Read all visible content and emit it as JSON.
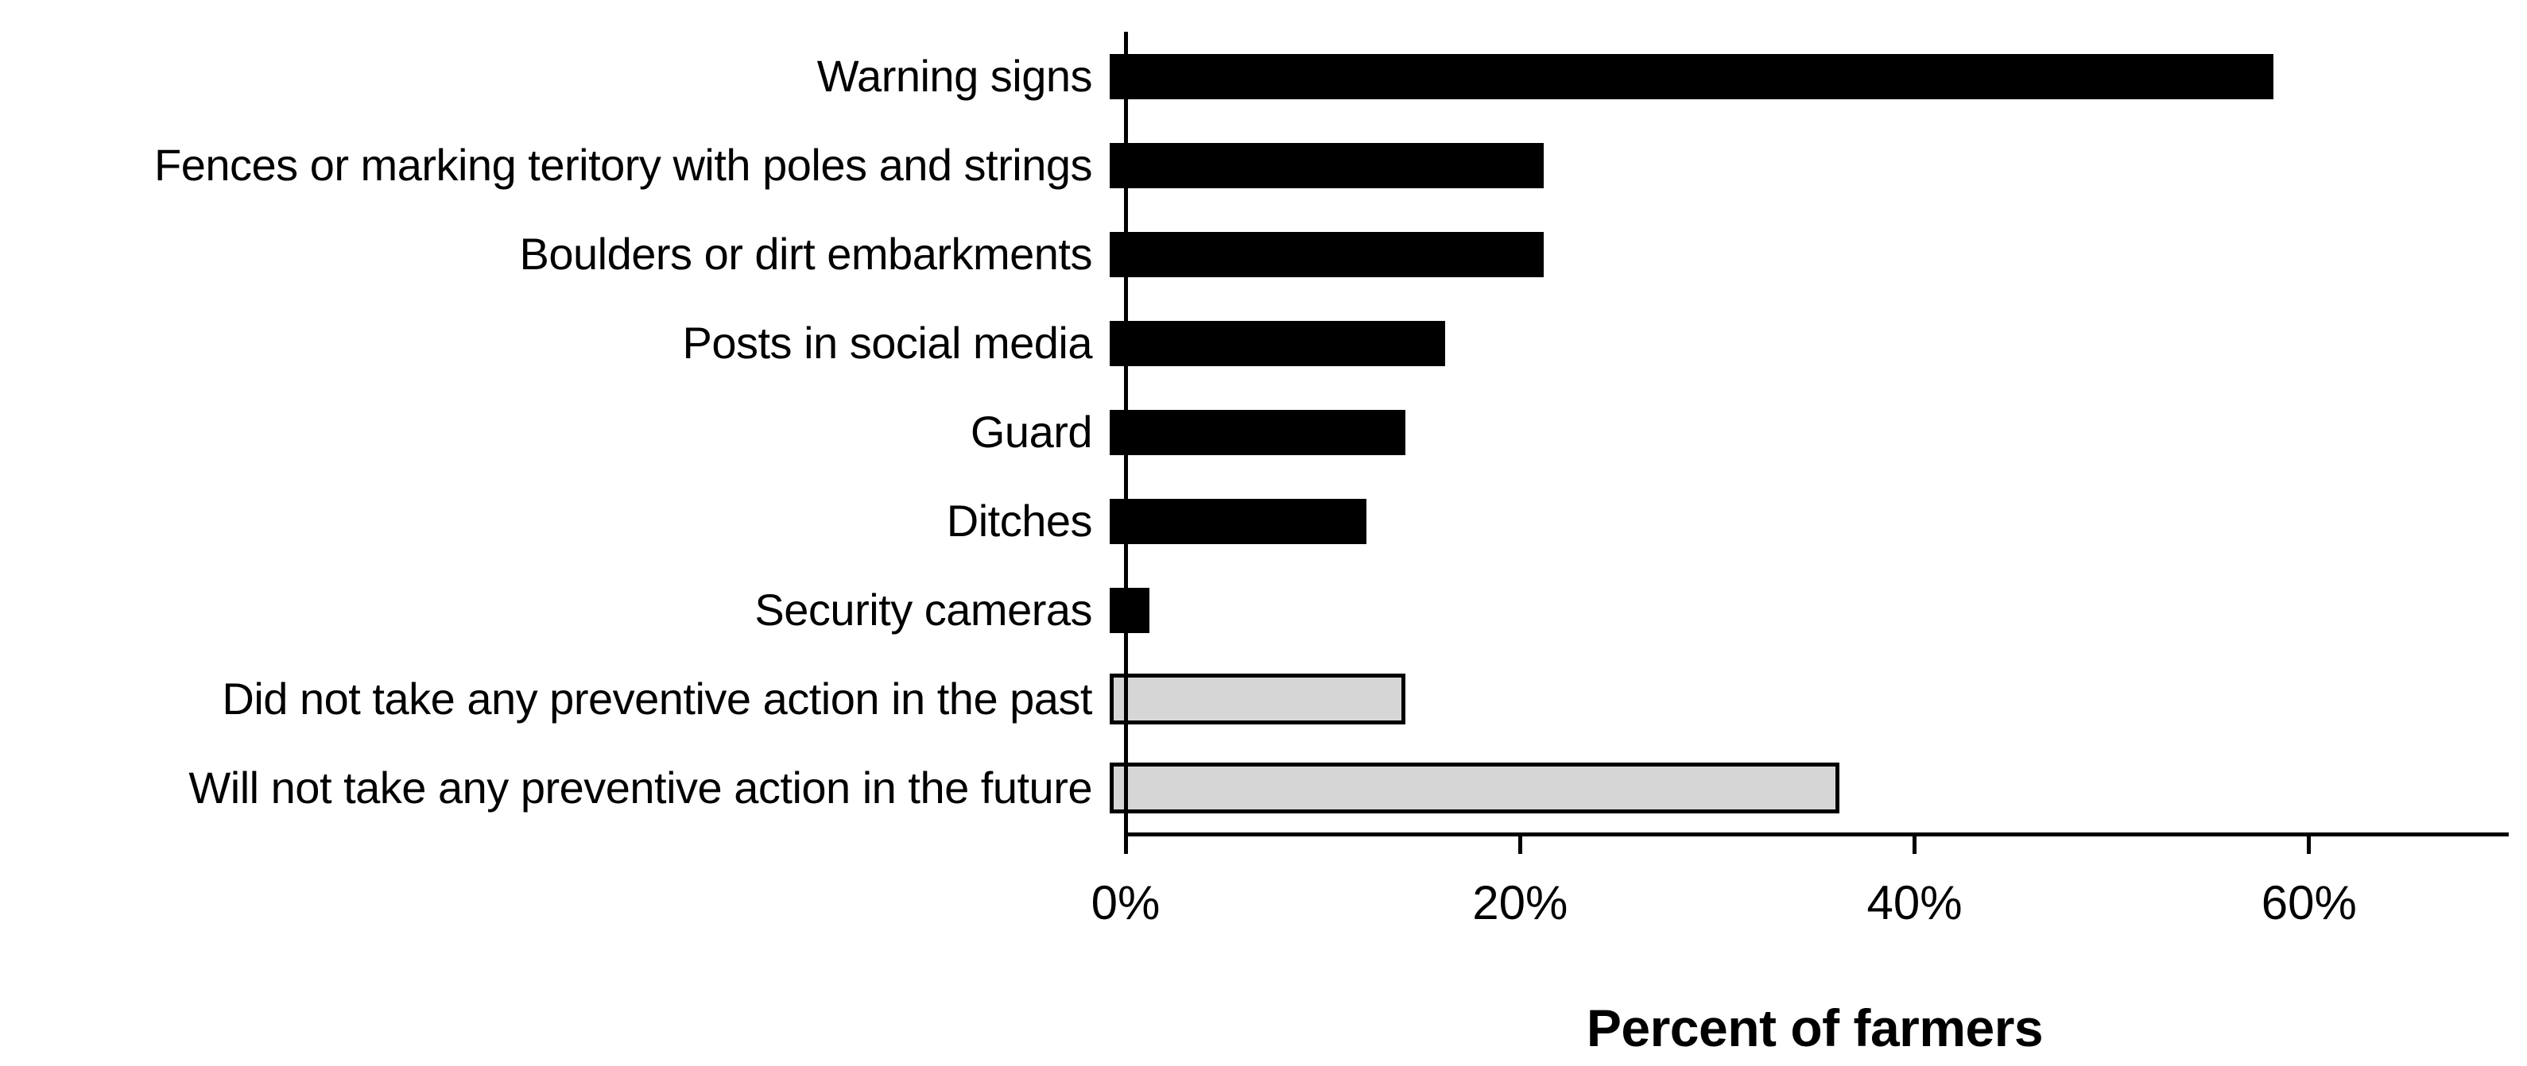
{
  "chart_data": {
    "type": "bar",
    "orientation": "horizontal",
    "title": "",
    "xlabel": "Percent of farmers",
    "ylabel": "",
    "xlim": [
      0,
      70
    ],
    "grid": false,
    "legend": false,
    "x_ticks": [
      {
        "label": "0%",
        "value": 0
      },
      {
        "label": "20%",
        "value": 20
      },
      {
        "label": "40%",
        "value": 40
      },
      {
        "label": "60%",
        "value": 60
      }
    ],
    "categories": [
      "Warning signs",
      "Fences or marking teritory with poles and strings",
      "Boulders or dirt embarkments",
      "Posts in social media",
      "Guard",
      "Ditches",
      "Security cameras",
      "Did not take any preventive action in the past",
      "Will not take any preventive action in the future"
    ],
    "values": [
      59,
      22,
      22,
      17,
      15,
      13,
      2,
      15,
      37
    ],
    "bar_fill_colors": [
      "#000000",
      "#000000",
      "#000000",
      "#000000",
      "#000000",
      "#000000",
      "#000000",
      "#d6d6d6",
      "#d6d6d6"
    ],
    "bar_border_colors": [
      "none",
      "none",
      "none",
      "none",
      "none",
      "none",
      "none",
      "#000000",
      "#000000"
    ]
  },
  "colors": {
    "background": "#ffffff",
    "axis": "#000000",
    "text": "#000000",
    "bar_primary": "#000000",
    "bar_secondary_fill": "#d6d6d6",
    "bar_secondary_border": "#000000"
  }
}
